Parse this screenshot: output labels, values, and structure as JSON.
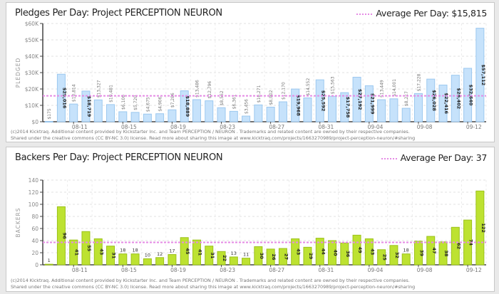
{
  "colors": {
    "pledges_bar": "#c6e2fb",
    "pledges_bar_stroke": "#9cc8ef",
    "backers_bar": "#bde231",
    "backers_bar_stroke": "#9cc21a",
    "average_line": "#e58be5"
  },
  "chart_data": [
    {
      "type": "bar",
      "title": "Pledges Per Day: Project PERCEPTION NEURON",
      "ylabel": "PLEDGED",
      "average_label": "Average Per Day:",
      "average_value": "$15,815",
      "average": 15815,
      "ylim": [
        0,
        60000
      ],
      "yticks": [
        "$0",
        "$10K",
        "$20K",
        "$30K",
        "$40K",
        "$50K",
        "$60K"
      ],
      "xtick_labels": [
        "08-11",
        "08-15",
        "08-19",
        "08-23",
        "08-27",
        "08-31",
        "09-04",
        "09-08",
        "09-12"
      ],
      "categories": [
        "08-09",
        "08-10",
        "08-11",
        "08-12",
        "08-13",
        "08-14",
        "08-15",
        "08-16",
        "08-17",
        "08-18",
        "08-19",
        "08-20",
        "08-21",
        "08-22",
        "08-23",
        "08-24",
        "08-25",
        "08-26",
        "08-27",
        "08-28",
        "08-29",
        "08-30",
        "08-31",
        "09-01",
        "09-02",
        "09-03",
        "09-04",
        "09-05",
        "09-06",
        "09-07",
        "09-08",
        "09-09",
        "09-10",
        "09-11",
        "09-12",
        "09-13"
      ],
      "values": [
        175,
        29016,
        10814,
        18719,
        13327,
        10481,
        6100,
        5720,
        4675,
        4906,
        7286,
        18889,
        13486,
        12796,
        8562,
        6361,
        3456,
        10271,
        8902,
        12170,
        19968,
        14552,
        25592,
        15563,
        17758,
        27192,
        21999,
        13449,
        14001,
        8217,
        17228,
        26028,
        22416,
        28402,
        32640,
        57112
      ],
      "data_labels": [
        "$175",
        "$29,016",
        "$10,814",
        "$18,719",
        "$13,327",
        "$10,481",
        "$6,100",
        "$5,720",
        "$4,675",
        "$4,906",
        "$7,286",
        "$18,889",
        "$13,486",
        "$12,796",
        "$8,562",
        "$6,361",
        "$3,456",
        "$10,271",
        "$8,902",
        "$12,170",
        "$19,968",
        "$14,552",
        "$25,592",
        "$15,563",
        "$17,758",
        "$27,192",
        "$21,999",
        "$13,449",
        "$14,001",
        "$8,217",
        "$17,228",
        "$26,028",
        "$22,416",
        "$28,402",
        "$32,640",
        "$57,112"
      ],
      "grid": true,
      "legend": "top-right",
      "footer": [
        "(c)2014 Kicktraq. Additional content provided by Kickstarter Inc. and  Team PERCEPTION / NEURON . Trademarks and related content are owned by their respective companies.",
        "Shared under the creative commons (CC BY-NC 3.0) license. Read more about sharing this image at www.kicktraq.com/projects/1663270989/project-perception-neuron/#sharing"
      ]
    },
    {
      "type": "bar",
      "title": "Backers Per Day: Project PERCEPTION NEURON",
      "ylabel": "BACKERS",
      "average_label": "Average Per Day:",
      "average_value": "37",
      "average": 37,
      "ylim": [
        0,
        140
      ],
      "yticks": [
        "0",
        "20",
        "40",
        "60",
        "80",
        "100",
        "120",
        "140"
      ],
      "xtick_labels": [
        "08-11",
        "08-15",
        "08-19",
        "08-23",
        "08-27",
        "08-31",
        "09-04",
        "09-08",
        "09-12"
      ],
      "values": [
        1,
        96,
        41,
        55,
        43,
        31,
        18,
        18,
        10,
        12,
        17,
        45,
        41,
        31,
        22,
        13,
        11,
        30,
        26,
        27,
        43,
        29,
        44,
        40,
        36,
        49,
        43,
        25,
        32,
        18,
        39,
        47,
        38,
        62,
        74,
        122
      ],
      "data_labels": [
        "1",
        "96",
        "41",
        "55",
        "43",
        "31",
        "18",
        "18",
        "10",
        "12",
        "17",
        "45",
        "41",
        "31",
        "22",
        "13",
        "11",
        "30",
        "26",
        "27",
        "43",
        "29",
        "44",
        "40",
        "36",
        "49",
        "43",
        "25",
        "32",
        "18",
        "39",
        "47",
        "38",
        "62",
        "74",
        "122"
      ],
      "grid": true,
      "legend": "top-right",
      "footer": [
        "(c)2014 Kicktraq. Additional content provided by Kickstarter Inc. and  Team PERCEPTION / NEURON . Trademarks and related content are owned by their respective companies.",
        "Shared under the creative commons (CC BY-NC 3.0) license. Read more about sharing this image at www.kicktraq.com/projects/1663270989/project-perception-neuron/#sharing"
      ]
    }
  ]
}
